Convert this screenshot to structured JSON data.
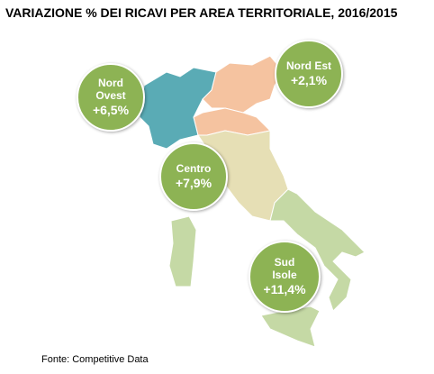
{
  "title": "VARIAZIONE % DEI RICAVI PER AREA TERRITORIALE, 2016/2015",
  "regions": [
    {
      "name": "Nord Ovest",
      "value": "+6,5%"
    },
    {
      "name": "Nord Est",
      "value": "+2,1%"
    },
    {
      "name": "Centro",
      "value": "+7,9%"
    },
    {
      "name": "Sud Isole",
      "value": "+11,4%"
    }
  ],
  "source": "Fonte: Competitive Data"
}
